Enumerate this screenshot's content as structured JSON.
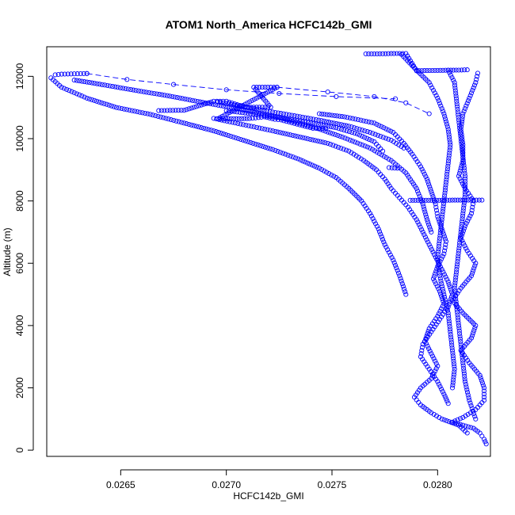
{
  "chart_data": {
    "type": "scatter",
    "title": "ATOM1 North_America HCFC142b_GMI",
    "xlabel": "HCFC142b_GMI",
    "ylabel": "Altitude (m)",
    "xlim": [
      0.02615,
      0.02825
    ],
    "ylim": [
      -200,
      12950
    ],
    "xticks": [
      0.0265,
      0.027,
      0.0275,
      0.028
    ],
    "xtick_labels": [
      "0.0265",
      "0.0270",
      "0.0275",
      "0.0280"
    ],
    "yticks": [
      0,
      2000,
      4000,
      6000,
      8000,
      10000,
      12000
    ],
    "ytick_labels": [
      "0",
      "2000",
      "4000",
      "6000",
      "8000",
      "10000",
      "12000"
    ],
    "marker": "open-circle",
    "color": "#0000ff",
    "grid": false,
    "legend": "none",
    "series": [
      {
        "mode": "markers",
        "points": [
          [
            0.02823,
            200
          ],
          [
            0.02822,
            350
          ],
          [
            0.0282,
            550
          ],
          [
            0.02817,
            700
          ],
          [
            0.02812,
            800
          ],
          [
            0.02807,
            900
          ],
          [
            0.02812,
            1050
          ],
          [
            0.02818,
            1300
          ],
          [
            0.02822,
            1600
          ],
          [
            0.02822,
            2000
          ],
          [
            0.0282,
            2400
          ],
          [
            0.02815,
            2800
          ],
          [
            0.02811,
            3200
          ],
          [
            0.02816,
            3600
          ],
          [
            0.02818,
            4000
          ],
          [
            0.02812,
            4400
          ],
          [
            0.02807,
            4800
          ],
          [
            0.02811,
            5200
          ],
          [
            0.02816,
            5600
          ],
          [
            0.02818,
            6000
          ],
          [
            0.02814,
            6400
          ],
          [
            0.02811,
            6800
          ],
          [
            0.02813,
            7200
          ],
          [
            0.02816,
            7600
          ],
          [
            0.02817,
            8000
          ],
          [
            0.02813,
            8400
          ],
          [
            0.0281,
            8800
          ],
          [
            0.02812,
            9300
          ],
          [
            0.02812,
            9800
          ],
          [
            0.02811,
            10300
          ],
          [
            0.02812,
            10800
          ],
          [
            0.02815,
            11300
          ],
          [
            0.02818,
            11800
          ],
          [
            0.02819,
            12100
          ],
          [
            0.02814,
            550
          ],
          [
            0.0281,
            800
          ],
          [
            0.02802,
            1000
          ],
          [
            0.02797,
            1200
          ],
          [
            0.02792,
            1450
          ],
          [
            0.02789,
            1700
          ],
          [
            0.02792,
            2000
          ],
          [
            0.02797,
            2300
          ],
          [
            0.028,
            2700
          ],
          [
            0.02797,
            3100
          ],
          [
            0.02794,
            3500
          ],
          [
            0.02796,
            3900
          ],
          [
            0.028,
            4300
          ],
          [
            0.02803,
            4700
          ],
          [
            0.02801,
            5100
          ],
          [
            0.02798,
            5500
          ],
          [
            0.028,
            5900
          ],
          [
            0.02803,
            6300
          ],
          [
            0.02804,
            6700
          ],
          [
            0.02802,
            7100
          ],
          [
            0.028,
            7500
          ],
          [
            0.02799,
            7900
          ],
          [
            0.02797,
            8300
          ],
          [
            0.02795,
            8700
          ],
          [
            0.02792,
            9100
          ],
          [
            0.02788,
            9500
          ],
          [
            0.02784,
            9850
          ],
          [
            0.02779,
            10200
          ],
          [
            0.0277,
            10500
          ],
          [
            0.02756,
            10700
          ],
          [
            0.02744,
            10800
          ],
          [
            0.02805,
            1500
          ],
          [
            0.02803,
            1800
          ],
          [
            0.028,
            2200
          ],
          [
            0.02796,
            2600
          ],
          [
            0.02792,
            3000
          ],
          [
            0.02793,
            3400
          ],
          [
            0.02797,
            3800
          ],
          [
            0.02801,
            4200
          ],
          [
            0.02805,
            4600
          ],
          [
            0.02807,
            5000
          ],
          [
            0.02805,
            5400
          ],
          [
            0.02802,
            5800
          ],
          [
            0.02799,
            6200
          ],
          [
            0.02796,
            6600
          ],
          [
            0.02793,
            7000
          ],
          [
            0.0279,
            7400
          ],
          [
            0.02786,
            7800
          ],
          [
            0.02782,
            8100
          ],
          [
            0.02778,
            8400
          ],
          [
            0.02775,
            8700
          ],
          [
            0.02771,
            9000
          ],
          [
            0.02765,
            9300
          ],
          [
            0.02758,
            9600
          ],
          [
            0.02748,
            9850
          ],
          [
            0.02735,
            10050
          ],
          [
            0.02722,
            10250
          ],
          [
            0.02708,
            10450
          ],
          [
            0.02694,
            10650
          ],
          [
            0.02785,
            5000
          ],
          [
            0.02782,
            5600
          ],
          [
            0.02779,
            6100
          ],
          [
            0.02775,
            6600
          ],
          [
            0.02772,
            7100
          ],
          [
            0.02768,
            7600
          ],
          [
            0.02764,
            8000
          ],
          [
            0.02758,
            8400
          ],
          [
            0.02752,
            8750
          ],
          [
            0.02744,
            9050
          ],
          [
            0.02734,
            9350
          ],
          [
            0.02722,
            9650
          ],
          [
            0.02708,
            9950
          ],
          [
            0.02694,
            10250
          ],
          [
            0.0268,
            10500
          ],
          [
            0.02664,
            10780
          ],
          [
            0.02648,
            11000
          ],
          [
            0.02634,
            11300
          ],
          [
            0.02622,
            11650
          ],
          [
            0.02617,
            11950
          ],
          [
            0.02797,
            7000
          ],
          [
            0.02795,
            7400
          ],
          [
            0.02793,
            7900
          ],
          [
            0.0279,
            8400
          ],
          [
            0.02785,
            8900
          ],
          [
            0.02778,
            9300
          ],
          [
            0.02768,
            9700
          ],
          [
            0.02755,
            10050
          ],
          [
            0.0274,
            10400
          ],
          [
            0.02724,
            10700
          ],
          [
            0.02706,
            10950
          ],
          [
            0.0269,
            11150
          ],
          [
            0.02672,
            11380
          ],
          [
            0.02656,
            11560
          ],
          [
            0.0264,
            11750
          ],
          [
            0.02628,
            11880
          ],
          [
            0.02784,
            9700
          ],
          [
            0.02778,
            9950
          ],
          [
            0.02768,
            10200
          ],
          [
            0.02758,
            10400
          ],
          [
            0.02745,
            10580
          ],
          [
            0.02731,
            10750
          ],
          [
            0.02718,
            10900
          ],
          [
            0.02706,
            11050
          ],
          [
            0.02696,
            11180
          ],
          [
            0.02783,
            12700
          ],
          [
            0.0279,
            12200
          ],
          [
            0.02796,
            11800
          ],
          [
            0.028,
            11300
          ],
          [
            0.02803,
            10800
          ],
          [
            0.02805,
            10300
          ],
          [
            0.02806,
            9800
          ],
          [
            0.02805,
            9200
          ],
          [
            0.02804,
            8600
          ],
          [
            0.02803,
            8000
          ],
          [
            0.02802,
            7400
          ],
          [
            0.02801,
            6800
          ],
          [
            0.028,
            6200
          ],
          [
            0.02801,
            5600
          ],
          [
            0.02803,
            5000
          ],
          [
            0.02805,
            4400
          ],
          [
            0.02806,
            3800
          ],
          [
            0.02807,
            3200
          ],
          [
            0.02808,
            2600
          ],
          [
            0.02807,
            2000
          ],
          [
            0.02805,
            12200
          ],
          [
            0.02808,
            11800
          ],
          [
            0.02809,
            11200
          ],
          [
            0.0281,
            10600
          ],
          [
            0.02811,
            10000
          ],
          [
            0.02812,
            9400
          ],
          [
            0.02813,
            8800
          ],
          [
            0.02813,
            8200
          ],
          [
            0.02812,
            7600
          ],
          [
            0.02811,
            7000
          ],
          [
            0.0281,
            6400
          ],
          [
            0.02809,
            5800
          ],
          [
            0.02808,
            5200
          ],
          [
            0.02809,
            4600
          ],
          [
            0.0281,
            4000
          ],
          [
            0.02811,
            3400
          ],
          [
            0.02812,
            2800
          ],
          [
            0.02813,
            2200
          ],
          [
            0.02815,
            1600
          ],
          [
            0.02818,
            1000
          ],
          [
            0.02774,
            9600
          ],
          [
            0.0277,
            9900
          ],
          [
            0.02762,
            10150
          ],
          [
            0.02752,
            10350
          ],
          [
            0.0274,
            10500
          ],
          [
            0.02727,
            10650
          ],
          [
            0.02714,
            10780
          ],
          [
            0.027,
            10900
          ]
        ]
      },
      {
        "mode": "markers",
        "points": [
          [
            0.02619,
            12050
          ],
          [
            0.02622,
            12070
          ],
          [
            0.02625,
            12075
          ],
          [
            0.02628,
            12080
          ],
          [
            0.02631,
            12085
          ],
          [
            0.02634,
            12090
          ],
          [
            0.02766,
            12720
          ],
          [
            0.0277,
            12720
          ],
          [
            0.02774,
            12725
          ],
          [
            0.02778,
            12730
          ],
          [
            0.02782,
            12735
          ],
          [
            0.02785,
            12735
          ],
          [
            0.0279,
            12180
          ],
          [
            0.02795,
            12185
          ],
          [
            0.028,
            12190
          ],
          [
            0.02805,
            12195
          ],
          [
            0.0281,
            12200
          ],
          [
            0.02814,
            12210
          ],
          [
            0.02787,
            8020
          ],
          [
            0.02792,
            8020
          ],
          [
            0.02797,
            8020
          ],
          [
            0.02802,
            8020
          ],
          [
            0.02807,
            8025
          ],
          [
            0.02812,
            8025
          ],
          [
            0.02817,
            8025
          ],
          [
            0.02821,
            8025
          ],
          [
            0.02668,
            10900
          ],
          [
            0.02672,
            10905
          ],
          [
            0.02676,
            10910
          ],
          [
            0.0268,
            10910
          ],
          [
            0.02694,
            11200
          ],
          [
            0.02697,
            11200
          ],
          [
            0.027,
            11200
          ],
          [
            0.02709,
            11010
          ],
          [
            0.02713,
            11010
          ],
          [
            0.02717,
            11010
          ],
          [
            0.02721,
            11010
          ],
          [
            0.02713,
            11650
          ],
          [
            0.02717,
            11650
          ],
          [
            0.02721,
            11650
          ],
          [
            0.02724,
            11650
          ],
          [
            0.02696,
            10640
          ],
          [
            0.02701,
            10640
          ],
          [
            0.02706,
            10640
          ],
          [
            0.02711,
            10645
          ],
          [
            0.02718,
            10700
          ],
          [
            0.02723,
            10620
          ],
          [
            0.02726,
            10600
          ],
          [
            0.02741,
            10330
          ],
          [
            0.02744,
            10330
          ],
          [
            0.02747,
            10330
          ],
          [
            0.02777,
            9070
          ],
          [
            0.02781,
            9050
          ]
        ]
      },
      {
        "mode": "dashed-line",
        "points": [
          [
            0.02634,
            12090
          ],
          [
            0.02653,
            11900
          ],
          [
            0.02675,
            11740
          ],
          [
            0.027,
            11570
          ],
          [
            0.02725,
            11450
          ],
          [
            0.02752,
            11350
          ],
          [
            0.0278,
            11280
          ]
        ]
      },
      {
        "mode": "dashed-line",
        "points": [
          [
            0.02724,
            11650
          ],
          [
            0.02748,
            11500
          ],
          [
            0.0277,
            11350
          ],
          [
            0.02785,
            11150
          ],
          [
            0.02796,
            10800
          ]
        ]
      }
    ]
  }
}
